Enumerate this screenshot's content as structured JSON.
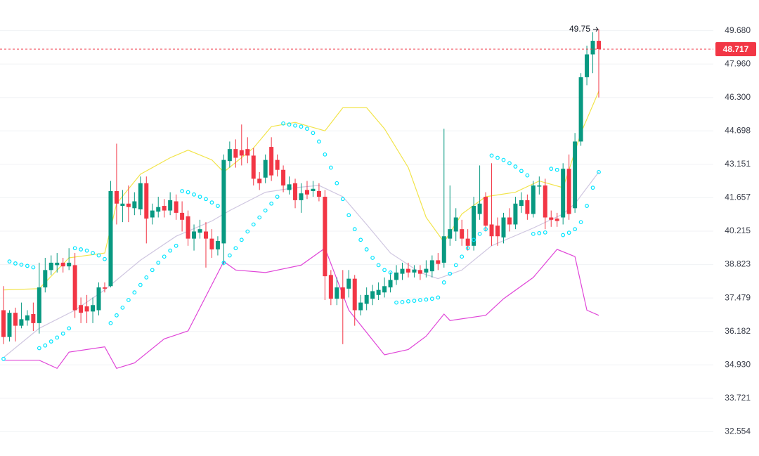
{
  "chart_data": {
    "type": "candlestick",
    "log_scale": true,
    "grid": true,
    "up_color": "#089981",
    "down_color": "#f23645",
    "ylim": [
      31.73,
      51.31
    ],
    "yticks": [
      {
        "value": 49.68,
        "label": "49.680"
      },
      {
        "value": 47.96,
        "label": "47.960"
      },
      {
        "value": 46.3,
        "label": "46.300"
      },
      44.698,
      43.151,
      41.657,
      40.215,
      38.823,
      37.479,
      36.182,
      {
        "value": 34.93,
        "label": "34.930"
      },
      33.721,
      32.554
    ],
    "open": [
      37.0,
      35.97,
      36.9,
      36.4,
      36.6,
      36.85,
      36.5,
      37.9,
      38.6,
      38.8,
      38.9,
      38.75,
      38.8,
      37.2,
      37.15,
      36.95,
      37.0,
      37.9,
      37.95,
      41.95,
      41.3,
      41.4,
      41.2,
      41.15,
      42.3,
      40.8,
      41.05,
      41.3,
      41.1,
      41.5,
      41.0,
      40.85,
      39.9,
      40.15,
      40.2,
      39.9,
      39.45,
      39.7,
      43.3,
      43.85,
      43.8,
      43.85,
      43.55,
      42.5,
      42.55,
      43.95,
      43.35,
      42.9,
      42.0,
      42.3,
      41.55,
      42.0,
      41.95,
      41.95,
      41.7,
      38.4,
      37.45,
      37.9,
      37.85,
      38.25,
      37.0,
      37.25,
      37.45,
      37.6,
      37.7,
      37.9,
      38.2,
      38.45,
      38.65,
      38.5,
      38.6,
      38.5,
      38.55,
      39.0,
      38.9,
      39.9,
      40.2,
      40.3,
      39.9,
      39.6,
      40.95,
      41.7,
      40.5,
      40.45,
      39.95,
      40.8,
      40.5,
      41.3,
      41.55,
      40.95,
      42.15,
      42.2,
      40.8,
      40.75,
      40.8,
      42.95,
      41.2,
      44.2,
      47.3,
      48.45,
      49.15
    ],
    "high": [
      37.95,
      37.0,
      37.1,
      37.3,
      37.0,
      37.3,
      38.9,
      39.1,
      39.2,
      39.3,
      39.1,
      39.5,
      39.3,
      37.5,
      37.6,
      37.5,
      38.1,
      38.1,
      42.4,
      44.1,
      42.0,
      42.2,
      41.9,
      42.6,
      42.6,
      41.4,
      41.7,
      41.6,
      41.9,
      41.8,
      41.5,
      41.1,
      40.5,
      40.7,
      40.6,
      40.3,
      40.0,
      43.6,
      44.2,
      44.3,
      45.0,
      44.4,
      43.9,
      42.8,
      43.6,
      44.4,
      43.6,
      43.1,
      42.6,
      42.5,
      42.3,
      42.4,
      42.4,
      42.3,
      42.0,
      38.6,
      38.3,
      38.6,
      38.6,
      38.4,
      37.6,
      37.9,
      38.0,
      38.1,
      38.3,
      38.5,
      38.8,
      38.9,
      38.9,
      38.8,
      38.8,
      39.0,
      39.2,
      39.3,
      44.8,
      42.2,
      41.2,
      40.7,
      40.3,
      41.7,
      43.1,
      41.9,
      43.2,
      40.8,
      41.0,
      41.2,
      41.7,
      41.9,
      41.8,
      42.4,
      42.6,
      42.5,
      41.1,
      41.0,
      43.2,
      43.6,
      44.6,
      47.5,
      48.9,
      49.6,
      49.75
    ],
    "low": [
      35.7,
      35.8,
      35.8,
      36.3,
      36.4,
      36.2,
      36.1,
      37.7,
      38.4,
      38.5,
      38.5,
      38.6,
      36.7,
      36.5,
      36.5,
      36.5,
      36.8,
      37.7,
      37.9,
      40.5,
      40.6,
      40.6,
      40.9,
      40.9,
      39.7,
      40.5,
      40.8,
      40.8,
      40.9,
      40.7,
      40.2,
      39.6,
      39.4,
      39.9,
      38.7,
      39.1,
      39.2,
      38.8,
      43.0,
      43.0,
      43.1,
      43.2,
      42.2,
      42.0,
      42.3,
      42.4,
      42.6,
      41.9,
      41.8,
      41.2,
      41.0,
      41.6,
      41.7,
      41.5,
      37.4,
      37.2,
      37.2,
      35.7,
      37.5,
      36.4,
      36.8,
      37.0,
      37.2,
      37.4,
      37.5,
      37.7,
      38.0,
      38.2,
      38.3,
      38.3,
      38.2,
      38.3,
      38.3,
      38.6,
      38.7,
      39.6,
      39.8,
      39.6,
      39.4,
      39.4,
      40.7,
      40.2,
      39.6,
      39.6,
      39.7,
      40.2,
      40.3,
      41.0,
      40.7,
      40.8,
      41.8,
      40.3,
      40.4,
      40.4,
      40.5,
      40.7,
      41.0,
      44.0,
      46.9,
      47.5,
      46.3
    ],
    "close": [
      35.97,
      36.9,
      36.4,
      36.65,
      36.8,
      36.5,
      37.9,
      38.6,
      38.9,
      38.9,
      38.75,
      38.9,
      37.0,
      36.9,
      36.95,
      37.2,
      37.9,
      37.85,
      41.95,
      41.4,
      41.4,
      41.25,
      41.5,
      42.3,
      40.75,
      41.1,
      41.25,
      41.1,
      41.55,
      41.0,
      40.7,
      39.9,
      40.2,
      40.3,
      39.9,
      39.45,
      39.8,
      43.35,
      43.85,
      43.45,
      43.55,
      43.55,
      42.5,
      42.3,
      43.35,
      42.65,
      42.9,
      42.2,
      42.25,
      41.55,
      41.85,
      41.8,
      42.05,
      41.7,
      38.35,
      37.45,
      37.9,
      37.45,
      38.25,
      37.0,
      37.3,
      37.6,
      37.75,
      37.8,
      37.95,
      38.2,
      38.5,
      38.65,
      38.5,
      38.62,
      38.45,
      38.65,
      39.0,
      38.85,
      40.0,
      40.3,
      40.8,
      39.9,
      39.6,
      41.3,
      41.4,
      40.45,
      40.0,
      40.0,
      40.8,
      40.5,
      41.4,
      41.55,
      40.95,
      42.2,
      42.2,
      40.8,
      40.7,
      40.65,
      42.95,
      40.95,
      44.2,
      47.3,
      48.45,
      49.15,
      48.717
    ],
    "sar": {
      "color": "#00e5ff",
      "values": [
        35.15,
        38.95,
        38.87,
        38.82,
        38.77,
        38.71,
        35.55,
        35.65,
        35.8,
        35.95,
        36.1,
        36.3,
        39.5,
        39.45,
        39.4,
        39.3,
        39.2,
        39.05,
        36.5,
        36.8,
        37.1,
        37.4,
        37.7,
        38.0,
        38.3,
        38.6,
        38.9,
        39.15,
        39.4,
        39.6,
        41.95,
        41.9,
        41.8,
        41.7,
        41.6,
        41.45,
        41.3,
        38.9,
        39.2,
        39.5,
        39.85,
        40.2,
        40.5,
        40.8,
        41.1,
        41.4,
        41.7,
        45.05,
        45.0,
        44.95,
        44.9,
        44.8,
        44.6,
        44.2,
        43.6,
        43.0,
        42.3,
        41.6,
        40.9,
        40.3,
        39.85,
        39.45,
        39.1,
        38.8,
        38.6,
        38.5,
        37.3,
        37.32,
        37.35,
        37.37,
        37.4,
        37.42,
        37.45,
        37.5,
        38.1,
        38.45,
        38.8,
        39.15,
        39.5,
        39.85,
        40.1,
        40.3,
        43.55,
        43.45,
        43.35,
        43.2,
        43.05,
        42.85,
        42.65,
        40.1,
        40.13,
        40.16,
        42.95,
        42.9,
        40.05,
        40.15,
        40.3,
        40.6,
        41.3,
        42.1,
        42.8
      ]
    },
    "overlays": [
      {
        "color": "#f2e44a",
        "x": [
          0,
          6,
          11,
          17,
          19,
          23,
          28,
          31,
          35,
          37,
          42,
          45,
          49,
          54,
          57,
          61,
          64,
          68,
          71,
          74,
          77,
          81,
          86,
          90,
          94,
          95,
          97,
          100
        ],
        "values": [
          37.8,
          37.85,
          39.1,
          39.3,
          41.4,
          42.7,
          43.45,
          43.8,
          43.35,
          42.8,
          43.9,
          44.9,
          45.1,
          44.7,
          45.8,
          45.8,
          44.8,
          43.0,
          40.8,
          39.75,
          40.95,
          41.7,
          41.9,
          42.4,
          42.1,
          42.9,
          44.6,
          46.6
        ]
      },
      {
        "color": "#cfc6e0",
        "x": [
          0,
          6,
          12,
          17,
          23,
          29,
          35,
          38,
          44,
          49,
          53,
          57,
          61,
          65,
          70,
          73,
          77,
          82,
          89,
          94,
          96,
          100
        ],
        "values": [
          35.2,
          36.3,
          37.0,
          37.8,
          39.0,
          40.0,
          40.65,
          41.1,
          41.9,
          42.1,
          42.2,
          41.7,
          40.5,
          39.3,
          38.5,
          38.25,
          38.6,
          39.6,
          40.35,
          40.95,
          41.4,
          42.8
        ]
      },
      {
        "color": "#e046d8",
        "x": [
          0,
          6,
          9,
          11,
          17,
          19,
          22,
          27,
          31,
          37,
          39,
          44,
          50,
          54,
          58,
          64,
          68,
          71,
          74,
          75,
          81,
          84,
          89,
          93,
          96,
          98,
          100
        ],
        "values": [
          35.1,
          35.1,
          34.8,
          35.4,
          35.6,
          34.8,
          35.0,
          35.9,
          36.2,
          38.95,
          38.6,
          38.5,
          38.8,
          39.5,
          37.0,
          35.3,
          35.5,
          36.0,
          36.85,
          36.6,
          36.8,
          37.45,
          38.3,
          39.45,
          39.15,
          37.0,
          36.8
        ]
      }
    ]
  }
}
